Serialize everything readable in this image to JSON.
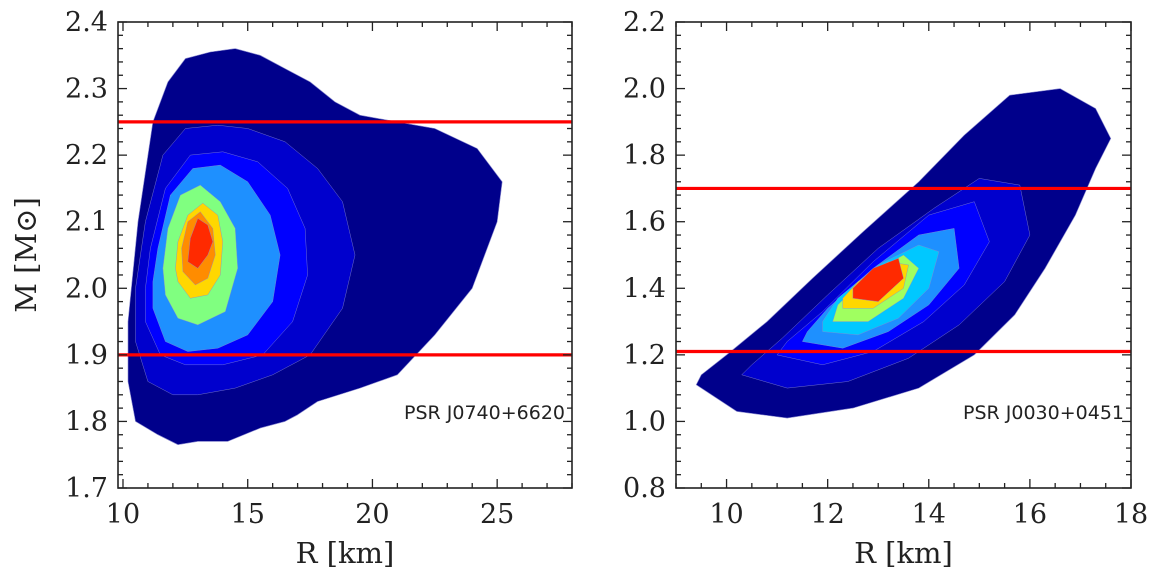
{
  "chart_data": [
    {
      "type": "contour",
      "ylabel": "M [M⊙]",
      "xlabel": "R [km]",
      "xlim": [
        9.8,
        28
      ],
      "ylim": [
        1.7,
        2.4
      ],
      "xticks": [
        10,
        15,
        20,
        25
      ],
      "xtick_labels": [
        "10",
        "15",
        "20",
        "25"
      ],
      "yticks": [
        1.7,
        1.8,
        1.9,
        2.0,
        2.1,
        2.2,
        2.3,
        2.4
      ],
      "ytick_labels": [
        "1.7",
        "1.8",
        "1.9",
        "2.0",
        "2.1",
        "2.2",
        "2.3",
        "2.4"
      ],
      "annotation": "PSR J0740+6620",
      "hlines": [
        {
          "y": 1.9,
          "color": "#ff0000"
        },
        {
          "y": 2.25,
          "color": "#ff0000"
        }
      ],
      "density_peak": {
        "x": 13.0,
        "y": 2.07
      },
      "levels": [
        {
          "color": "#00008b",
          "x": [
            10.2,
            10.5,
            11.4,
            12.2,
            13.0,
            14.2,
            15.5,
            16.5,
            17.0,
            17.8,
            19.5,
            21.0,
            22.5,
            24.0,
            25.0,
            25.2,
            24.2,
            22.5,
            21.0,
            19.5,
            18.5,
            17.5,
            16.5,
            15.5,
            14.5,
            13.5,
            12.5,
            11.8,
            11.2,
            10.6,
            10.2
          ],
          "y": [
            1.86,
            1.8,
            1.78,
            1.765,
            1.77,
            1.77,
            1.79,
            1.8,
            1.81,
            1.83,
            1.85,
            1.87,
            1.93,
            2.0,
            2.1,
            2.16,
            2.21,
            2.24,
            2.25,
            2.26,
            2.28,
            2.31,
            2.33,
            2.35,
            2.36,
            2.355,
            2.345,
            2.31,
            2.25,
            2.1,
            1.95
          ]
        },
        {
          "color": "#0000cd",
          "x": [
            10.5,
            11.0,
            12.0,
            13.0,
            14.5,
            16.0,
            17.5,
            18.8,
            19.3,
            18.8,
            17.8,
            16.5,
            15.0,
            13.8,
            12.5,
            11.6,
            10.9,
            10.5
          ],
          "y": [
            1.92,
            1.86,
            1.84,
            1.84,
            1.85,
            1.87,
            1.9,
            1.97,
            2.05,
            2.13,
            2.18,
            2.22,
            2.24,
            2.245,
            2.24,
            2.2,
            2.1,
            2.0
          ]
        },
        {
          "color": "#0000ff",
          "x": [
            10.9,
            11.5,
            12.5,
            14.0,
            15.6,
            16.8,
            17.4,
            17.3,
            16.6,
            15.4,
            14.0,
            12.7,
            11.7,
            11.1,
            10.9
          ],
          "y": [
            1.95,
            1.9,
            1.885,
            1.885,
            1.9,
            1.95,
            2.02,
            2.09,
            2.15,
            2.19,
            2.205,
            2.2,
            2.15,
            2.06,
            2.0
          ]
        },
        {
          "color": "#1e90ff",
          "x": [
            11.2,
            11.7,
            12.6,
            13.8,
            15.0,
            16.0,
            16.3,
            15.9,
            15.0,
            13.9,
            12.8,
            11.9,
            11.4,
            11.2
          ],
          "y": [
            1.97,
            1.92,
            1.905,
            1.91,
            1.93,
            1.98,
            2.05,
            2.11,
            2.16,
            2.185,
            2.18,
            2.14,
            2.06,
            2.01
          ]
        },
        {
          "color": "#80ff80",
          "x": [
            11.7,
            12.2,
            13.0,
            14.1,
            14.6,
            14.5,
            13.9,
            13.1,
            12.3,
            11.8,
            11.6
          ],
          "y": [
            1.99,
            1.955,
            1.945,
            1.965,
            2.03,
            2.09,
            2.13,
            2.155,
            2.14,
            2.09,
            2.03
          ]
        },
        {
          "color": "#ffd700",
          "x": [
            12.2,
            12.7,
            13.4,
            13.9,
            14.0,
            13.8,
            13.2,
            12.6,
            12.2,
            12.1
          ],
          "y": [
            2.01,
            1.985,
            1.99,
            2.02,
            2.07,
            2.11,
            2.128,
            2.11,
            2.07,
            2.03
          ]
        },
        {
          "color": "#ff8c00",
          "x": [
            12.4,
            12.9,
            13.4,
            13.7,
            13.6,
            13.1,
            12.6,
            12.35
          ],
          "y": [
            2.025,
            2.005,
            2.015,
            2.05,
            2.09,
            2.115,
            2.1,
            2.06
          ]
        },
        {
          "color": "#ff2a00",
          "x": [
            12.6,
            13.0,
            13.4,
            13.6,
            13.4,
            13.0,
            12.7
          ],
          "y": [
            2.04,
            2.03,
            2.05,
            2.07,
            2.095,
            2.105,
            2.075
          ]
        }
      ]
    },
    {
      "type": "contour",
      "ylabel": "",
      "xlabel": "R [km]",
      "xlim": [
        9.0,
        18.0
      ],
      "ylim": [
        0.8,
        2.2
      ],
      "xticks": [
        10,
        12,
        14,
        16,
        18
      ],
      "xtick_labels": [
        "10",
        "12",
        "14",
        "16",
        "18"
      ],
      "yticks": [
        0.8,
        1.0,
        1.2,
        1.4,
        1.6,
        1.8,
        2.0,
        2.2
      ],
      "ytick_labels": [
        "0.8",
        "1.0",
        "1.2",
        "1.4",
        "1.6",
        "1.8",
        "2.0",
        "2.2"
      ],
      "annotation": "PSR J0030+0451",
      "hlines": [
        {
          "y": 1.21,
          "color": "#ff0000"
        },
        {
          "y": 1.7,
          "color": "#ff0000"
        }
      ],
      "density_peak": {
        "x": 12.9,
        "y": 1.42
      },
      "levels": [
        {
          "color": "#00008b",
          "x": [
            9.4,
            10.2,
            11.2,
            12.5,
            13.8,
            14.9,
            15.7,
            16.3,
            16.9,
            17.3,
            17.6,
            17.3,
            16.6,
            15.6,
            14.7,
            13.8,
            12.7,
            11.7,
            10.8,
            10.0,
            9.5
          ],
          "y": [
            1.11,
            1.03,
            1.01,
            1.04,
            1.1,
            1.2,
            1.32,
            1.46,
            1.62,
            1.76,
            1.85,
            1.94,
            2.0,
            1.98,
            1.86,
            1.72,
            1.57,
            1.43,
            1.3,
            1.2,
            1.14
          ]
        },
        {
          "color": "#0000cd",
          "x": [
            10.3,
            11.2,
            12.4,
            13.6,
            14.6,
            15.5,
            16.0,
            15.8,
            15.0,
            14.1,
            13.0,
            12.0,
            11.1,
            10.5
          ],
          "y": [
            1.14,
            1.1,
            1.12,
            1.19,
            1.29,
            1.42,
            1.56,
            1.71,
            1.73,
            1.64,
            1.52,
            1.38,
            1.25,
            1.17
          ]
        },
        {
          "color": "#0000ff",
          "x": [
            11.0,
            11.9,
            12.9,
            13.9,
            14.7,
            15.2,
            14.9,
            14.0,
            12.9,
            11.9,
            11.2
          ],
          "y": [
            1.2,
            1.17,
            1.21,
            1.3,
            1.41,
            1.54,
            1.66,
            1.62,
            1.48,
            1.33,
            1.24
          ]
        },
        {
          "color": "#1e90ff",
          "x": [
            11.5,
            12.3,
            13.2,
            14.0,
            14.6,
            14.5,
            13.8,
            12.9,
            12.0,
            11.6
          ],
          "y": [
            1.24,
            1.22,
            1.27,
            1.35,
            1.46,
            1.58,
            1.56,
            1.46,
            1.34,
            1.27
          ]
        },
        {
          "color": "#00c8ff",
          "x": [
            11.9,
            12.6,
            13.4,
            14.0,
            14.2,
            13.8,
            13.0,
            12.2,
            11.9
          ],
          "y": [
            1.27,
            1.26,
            1.31,
            1.4,
            1.51,
            1.53,
            1.47,
            1.37,
            1.3
          ]
        },
        {
          "color": "#a0ff60",
          "x": [
            12.1,
            12.8,
            13.5,
            13.8,
            13.5,
            12.8,
            12.2
          ],
          "y": [
            1.3,
            1.3,
            1.37,
            1.46,
            1.5,
            1.44,
            1.35
          ]
        },
        {
          "color": "#ffd700",
          "x": [
            12.3,
            12.9,
            13.5,
            13.6,
            13.2,
            12.6,
            12.3
          ],
          "y": [
            1.34,
            1.34,
            1.4,
            1.47,
            1.48,
            1.42,
            1.37
          ]
        },
        {
          "color": "#ff2a00",
          "x": [
            12.5,
            13.0,
            13.5,
            13.4,
            12.9,
            12.5
          ],
          "y": [
            1.37,
            1.36,
            1.43,
            1.49,
            1.46,
            1.4
          ]
        }
      ]
    }
  ]
}
